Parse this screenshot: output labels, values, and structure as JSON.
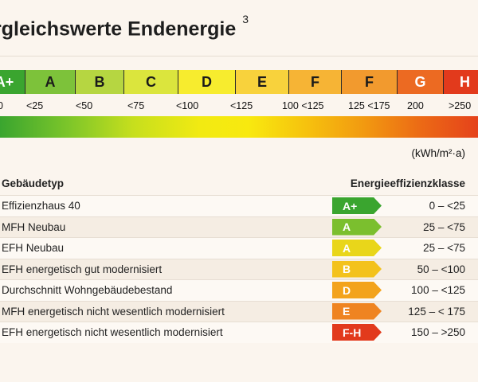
{
  "title": "rgleichswerte Endenergie",
  "title_superscript": "3",
  "scale": {
    "segments": [
      {
        "label": "A+",
        "color": "#3aa52f"
      },
      {
        "label": "A",
        "color": "#7dc23a"
      },
      {
        "label": "B",
        "color": "#b6d641"
      },
      {
        "label": "C",
        "color": "#dbe53d"
      },
      {
        "label": "D",
        "color": "#f7ec2e"
      },
      {
        "label": "E",
        "color": "#f8d23c"
      },
      {
        "label": "F",
        "color": "#f6b435"
      },
      {
        "label": "F",
        "color": "#f29a2e"
      },
      {
        "label": "G",
        "color": "#ec6a22"
      },
      {
        "label": "H",
        "color": "#e23a1c"
      }
    ],
    "ticks": [
      "0",
      "<25",
      "<50",
      "<75",
      "<100",
      "<125",
      "100 <125",
      "125 <175",
      "200",
      ">250"
    ]
  },
  "unit": "(kWh/m²·a)",
  "table": {
    "col_type": "Gebäudetyp",
    "col_class": "Energieeffizienzklasse",
    "rows": [
      {
        "type": "Effizienzhaus 40",
        "class": "A+",
        "range": "0 – <25",
        "color": "#3aa52f"
      },
      {
        "type": "MFH Neubau",
        "class": "A",
        "range": "25 – <75",
        "color": "#7bbf2e"
      },
      {
        "type": "EFH Neubau",
        "class": "A",
        "range": "25 – <75",
        "color": "#e9d61a"
      },
      {
        "type": "EFH energetisch gut modernisiert",
        "class": "B",
        "range": "50 – <100",
        "color": "#f3c21c"
      },
      {
        "type": "Durchschnitt Wohngebäudebestand",
        "class": "D",
        "range": "100 – <125",
        "color": "#f3a31c"
      },
      {
        "type": "MFH energetisch nicht wesentlich modernisiert",
        "class": "E",
        "range": "125 – < 175",
        "color": "#ef8421"
      },
      {
        "type": "EFH energetisch nicht wesentlich modernisiert",
        "class": "F-H",
        "range": "150 – >250",
        "color": "#e23a1c"
      }
    ]
  }
}
